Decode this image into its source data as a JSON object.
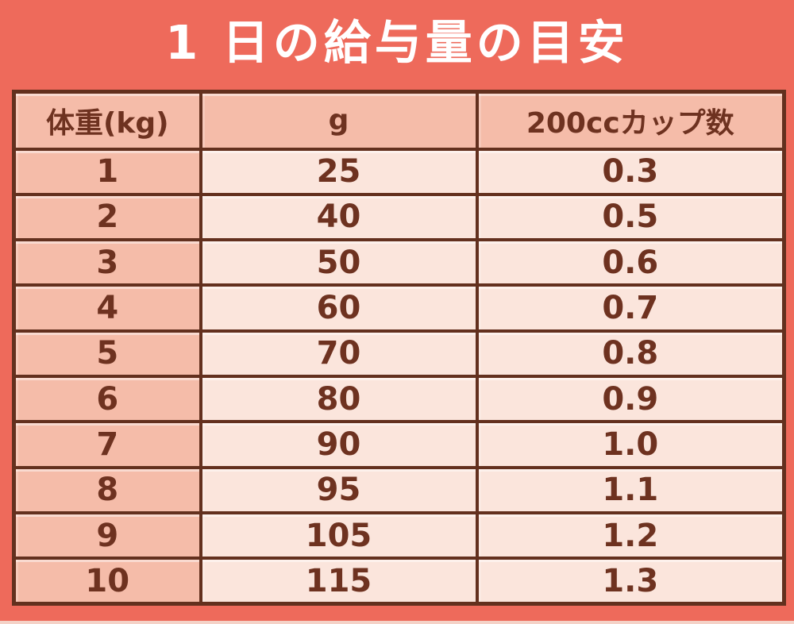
{
  "title": {
    "text": "1 日の給与量の目安"
  },
  "colors": {
    "background": "#EE6A5B",
    "title_text": "#FFFFFF",
    "table_border": "#63301E",
    "header_bg": "#F5BCA9",
    "weight_column_bg": "#F5BCA9",
    "cell_bg": "#FBE5DC",
    "cell_text": "#6E3220",
    "bottom_strip": "#F4D2C7"
  },
  "table": {
    "columns": [
      "体重(kg)",
      "g",
      "200ccカップ数"
    ],
    "rows": [
      [
        "1",
        "25",
        "0.3"
      ],
      [
        "2",
        "40",
        "0.5"
      ],
      [
        "3",
        "50",
        "0.6"
      ],
      [
        "4",
        "60",
        "0.7"
      ],
      [
        "5",
        "70",
        "0.8"
      ],
      [
        "6",
        "80",
        "0.9"
      ],
      [
        "7",
        "90",
        "1.0"
      ],
      [
        "8",
        "95",
        "1.1"
      ],
      [
        "9",
        "105",
        "1.2"
      ],
      [
        "10",
        "115",
        "1.3"
      ]
    ]
  },
  "chart_data": {
    "type": "table",
    "title": "1 日の給与量の目安",
    "columns": [
      "体重(kg)",
      "g",
      "200ccカップ数"
    ],
    "rows": [
      [
        1,
        25,
        0.3
      ],
      [
        2,
        40,
        0.5
      ],
      [
        3,
        50,
        0.6
      ],
      [
        4,
        60,
        0.7
      ],
      [
        5,
        70,
        0.8
      ],
      [
        6,
        80,
        0.9
      ],
      [
        7,
        90,
        1.0
      ],
      [
        8,
        95,
        1.1
      ],
      [
        9,
        105,
        1.2
      ],
      [
        10,
        115,
        1.3
      ]
    ]
  }
}
